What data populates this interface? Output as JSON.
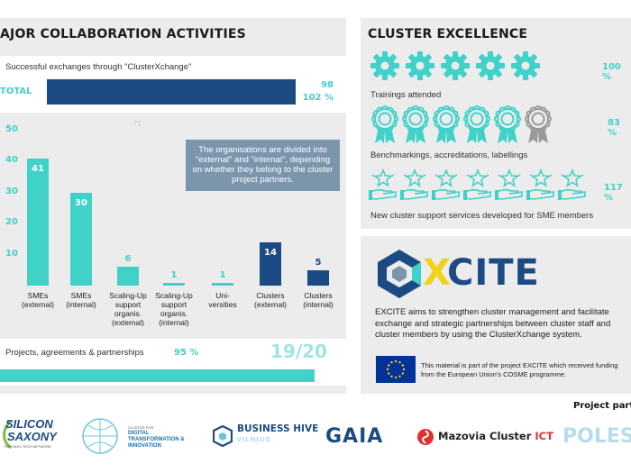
{
  "left": {
    "title": "AJOR COLLABORATION ACTIVITIES",
    "exchanges": {
      "label": "Successful exchanges through \"ClusterXchange\"",
      "total_label": "TOTAL",
      "value": "98",
      "percent": "102 %",
      "progress_pct": 102
    },
    "faint_mark": "71",
    "note": "The organisations are divided into \"external\" and \"internal\", depending on whether they belong to the cluster project partners.",
    "chart_data": {
      "type": "bar",
      "categories": [
        "SMEs (external)",
        "SMEs (internal)",
        "Scaling-Up support organis. (external)",
        "Scaling-Up support organis. (internal)",
        "Uni-versities",
        "Clusters (external)",
        "Clusters (internal)"
      ],
      "values": [
        41,
        30,
        6,
        1,
        1,
        14,
        5
      ],
      "colors": [
        "#40d2c8",
        "#40d2c8",
        "#40d2c8",
        "#40d2c8",
        "#40d2c8",
        "#1c4b84",
        "#1c4b84"
      ],
      "y_ticks": [
        "50",
        "40",
        "30",
        "20",
        "10"
      ],
      "ylim": [
        0,
        50
      ]
    },
    "labels": [
      [
        "SMEs",
        "(external)"
      ],
      [
        "SMEs",
        "(internal)"
      ],
      [
        "Scaling-Up",
        "support",
        "organis.",
        "(external)"
      ],
      [
        "Scaling-Up",
        "support",
        "organis.",
        "(internal)"
      ],
      [
        "Uni-",
        "versities"
      ],
      [
        "Clusters",
        "(external)"
      ],
      [
        "Clusters",
        "(internal)"
      ]
    ],
    "projects": {
      "label": "Projects, agreements & partnerships",
      "percent": "95 %",
      "ratio": "19/20",
      "progress_pct": 95
    }
  },
  "right": {
    "title": "CLUSTER EXCELLENCE",
    "trainings": {
      "label": "Trainings attended",
      "percent": "100 %",
      "filled": 5,
      "total": 5
    },
    "benchmarkings": {
      "label": "Benchmarkings, accreditations, labellings",
      "percent": "83 %",
      "filled": 5,
      "total": 6
    },
    "services": {
      "label": "New cluster support services developed for SME members",
      "percent": "117 %",
      "filled": 7,
      "total": 7
    },
    "excite": {
      "logo_text": "CITE",
      "logo_x": "X",
      "description": "EXCITE aims to strengthen cluster management and facilitate exchange and strategic partnerships between cluster staff and cluster members by using the ClusterXchange system.",
      "eu_text": "This material is part of the project EXCITE which received funding from the European Union's COSME programme."
    }
  },
  "footer": {
    "partners_title": "Project partn",
    "partners": {
      "silicon_top": "SILICON",
      "silicon_bottom": "SAXONY",
      "silicon_tag": "THE HIGH-TECH NETWORK",
      "dt_small": "CLUSTER FOR",
      "dt_line1": "DIGITAL",
      "dt_line2": "TRANSFORMATION &",
      "dt_line3": "INNOVATION",
      "bh_name": "BUSINESS HIVE",
      "bh_city": "VILNIUS",
      "gaia": "GAIA",
      "mazovia": "Mazovia Cluster",
      "mazovia_ict": "ICT",
      "pole": "POLESC"
    }
  },
  "colors": {
    "teal": "#40d2c8",
    "navy": "#1c4b84",
    "panel": "#ececec",
    "note": "#7b95ad"
  }
}
